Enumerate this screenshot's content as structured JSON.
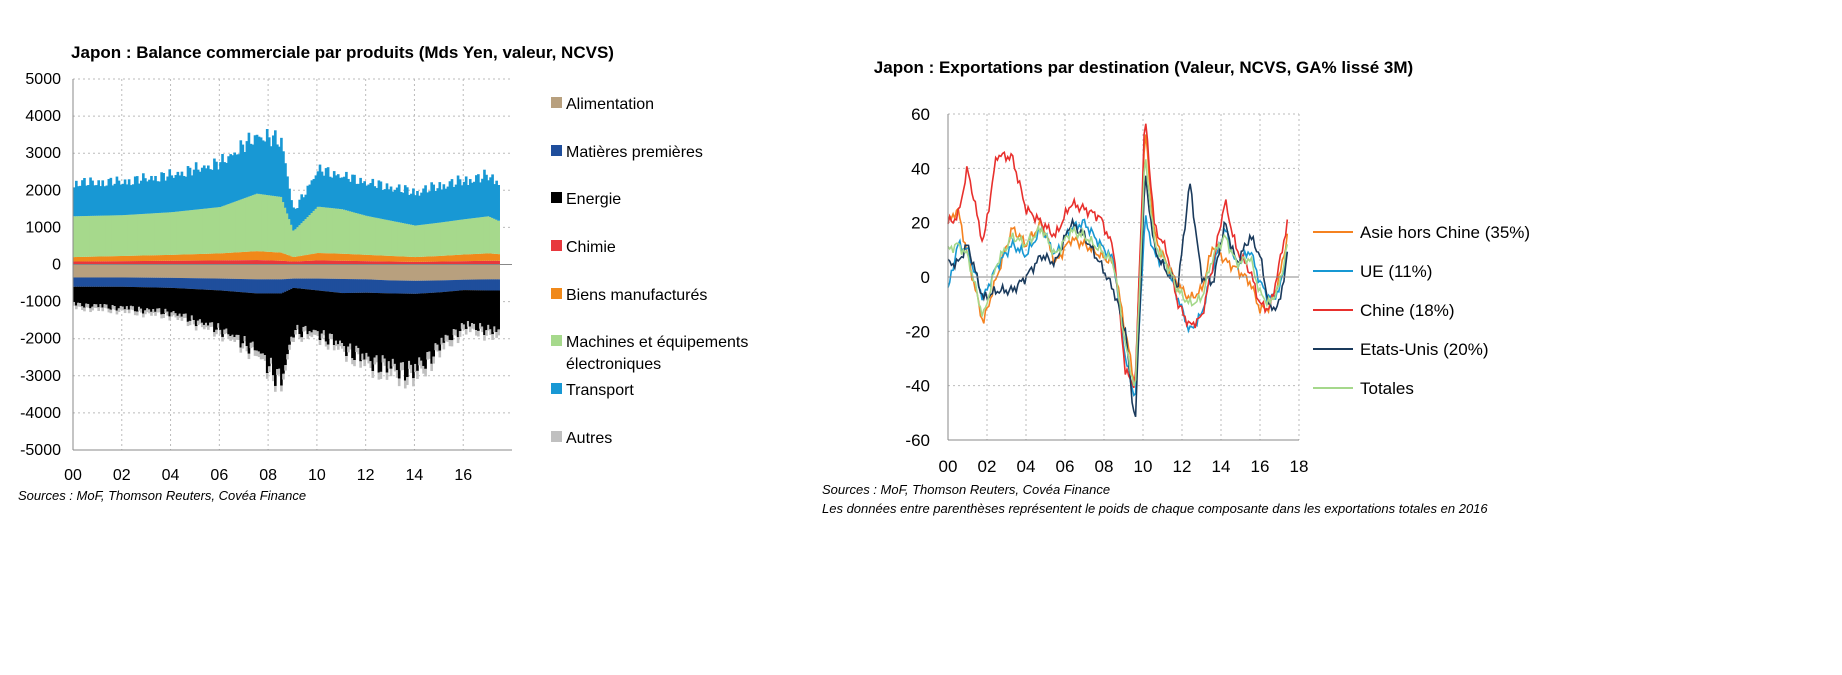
{
  "chart_data": [
    {
      "type": "area",
      "stacked": true,
      "title": "Japon : Balance commerciale par produits (Mds Yen, valeur, NCVS)",
      "xlabel": "",
      "ylabel": "",
      "ylim": [
        -5000,
        5000
      ],
      "yticks": [
        5000,
        4000,
        3000,
        2000,
        1000,
        0,
        -1000,
        -2000,
        -3000,
        -4000,
        -5000
      ],
      "xlim": [
        2000,
        2018
      ],
      "xtick_values": [
        2000,
        2002,
        2004,
        2006,
        2008,
        2010,
        2012,
        2014,
        2016
      ],
      "xtick_labels": [
        "00",
        "02",
        "04",
        "06",
        "08",
        "10",
        "12",
        "14",
        "16"
      ],
      "grid": true,
      "legend_position": "right",
      "anchor_x": [
        2000,
        2002,
        2004,
        2006,
        2007.5,
        2008.5,
        2009,
        2010,
        2011,
        2012,
        2013,
        2014,
        2015,
        2016,
        2017,
        2017.4
      ],
      "series": [
        {
          "name": "Alimentation",
          "color": "#b8a07e",
          "values": [
            -350,
            -350,
            -360,
            -380,
            -400,
            -400,
            -380,
            -380,
            -390,
            -400,
            -430,
            -440,
            -430,
            -410,
            -400,
            -400
          ]
        },
        {
          "name": "Matières premières",
          "color": "#1f4e9c",
          "values": [
            -250,
            -250,
            -270,
            -320,
            -380,
            -380,
            -250,
            -320,
            -380,
            -360,
            -350,
            -350,
            -320,
            -280,
            -300,
            -300
          ]
        },
        {
          "name": "Energie",
          "color": "#000000",
          "values": [
            -500,
            -600,
            -700,
            -1100,
            -1600,
            -2500,
            -1200,
            -1200,
            -1500,
            -1900,
            -2100,
            -2200,
            -1500,
            -1000,
            -1100,
            -1200
          ]
        },
        {
          "name": "Chimie",
          "color": "#e8383d",
          "values": [
            80,
            90,
            100,
            110,
            120,
            100,
            80,
            110,
            100,
            90,
            80,
            70,
            80,
            90,
            100,
            100
          ]
        },
        {
          "name": "Biens manufacturés",
          "color": "#f0891a",
          "values": [
            120,
            140,
            160,
            190,
            240,
            220,
            120,
            200,
            190,
            170,
            150,
            130,
            150,
            180,
            200,
            180
          ]
        },
        {
          "name": "Machines et équipements électroniques",
          "color": "#a6d98c",
          "values": [
            1100,
            1100,
            1150,
            1250,
            1550,
            1500,
            700,
            1250,
            1200,
            1050,
            950,
            850,
            900,
            950,
            1000,
            900
          ]
        },
        {
          "name": "Transport",
          "color": "#1898d4",
          "values": [
            950,
            950,
            1050,
            1250,
            1650,
            1600,
            550,
            1050,
            950,
            950,
            950,
            950,
            1050,
            1100,
            1150,
            1100
          ]
        },
        {
          "name": "Autres",
          "color": "#c0c0c0",
          "values": [
            -100,
            -100,
            -110,
            -120,
            -150,
            -160,
            -120,
            -130,
            -150,
            -180,
            -200,
            -220,
            -180,
            -150,
            -150,
            -160
          ]
        }
      ]
    },
    {
      "type": "line",
      "title": "Japon : Exportations par destination (Valeur, NCVS, GA% lissé 3M)",
      "xlabel": "",
      "ylabel": "",
      "ylim": [
        -60,
        60
      ],
      "yticks": [
        60,
        40,
        20,
        0,
        -20,
        -40,
        -60
      ],
      "xlim": [
        2000,
        2018
      ],
      "xtick_values": [
        2000,
        2002,
        2004,
        2006,
        2008,
        2010,
        2012,
        2014,
        2016,
        2018
      ],
      "xtick_labels": [
        "00",
        "02",
        "04",
        "06",
        "08",
        "10",
        "12",
        "14",
        "16",
        "18"
      ],
      "grid": true,
      "legend_position": "right",
      "series": [
        {
          "name": "Asie hors Chine (35%)",
          "color": "#f58220",
          "x": [
            2000,
            2000.5,
            2001,
            2001.8,
            2002.5,
            2003.3,
            2004,
            2004.8,
            2005.5,
            2006.3,
            2007,
            2007.8,
            2008.5,
            2009.1,
            2009.6,
            2010.1,
            2010.6,
            2011.2,
            2011.8,
            2012.4,
            2013,
            2013.6,
            2014.2,
            2014.8,
            2015.5,
            2016,
            2016.5,
            2017,
            2017.4
          ],
          "y": [
            20,
            25,
            8,
            -17,
            0,
            18,
            12,
            20,
            5,
            14,
            12,
            8,
            5,
            -20,
            -40,
            55,
            15,
            5,
            -3,
            -8,
            -5,
            12,
            6,
            3,
            -2,
            -12,
            -11,
            0,
            15
          ]
        },
        {
          "name": "UE (11%)",
          "color": "#1798d3",
          "x": [
            2000,
            2000.5,
            2001,
            2001.8,
            2002.5,
            2003.3,
            2004,
            2004.8,
            2005.5,
            2006.3,
            2007,
            2007.8,
            2008.5,
            2009.1,
            2009.6,
            2010.1,
            2010.6,
            2011.2,
            2011.8,
            2012.4,
            2013,
            2013.6,
            2014.2,
            2014.8,
            2015.5,
            2016,
            2016.5,
            2017,
            2017.4
          ],
          "y": [
            -5,
            12,
            10,
            -8,
            4,
            12,
            8,
            18,
            8,
            18,
            20,
            12,
            6,
            -30,
            -45,
            22,
            8,
            4,
            -8,
            -20,
            -14,
            4,
            18,
            4,
            10,
            -2,
            -8,
            -5,
            10
          ]
        },
        {
          "name": "Chine (18%)",
          "color": "#e8302d",
          "x": [
            2000,
            2000.5,
            2001,
            2001.8,
            2002.5,
            2003.3,
            2004,
            2004.8,
            2005.5,
            2006.3,
            2007,
            2007.8,
            2008.5,
            2009.1,
            2009.6,
            2010.1,
            2010.6,
            2011.2,
            2011.8,
            2012.4,
            2013,
            2013.6,
            2014.2,
            2014.8,
            2015.5,
            2016,
            2016.5,
            2017,
            2017.4
          ],
          "y": [
            20,
            22,
            40,
            12,
            45,
            44,
            25,
            20,
            15,
            27,
            25,
            22,
            10,
            -35,
            -40,
            60,
            18,
            10,
            -10,
            -18,
            -15,
            5,
            28,
            10,
            2,
            -10,
            -12,
            5,
            20
          ]
        },
        {
          "name": "Etats-Unis (20%)",
          "color": "#1a3a5c",
          "x": [
            2000,
            2000.5,
            2001,
            2001.8,
            2002.5,
            2003.3,
            2004,
            2004.8,
            2005.5,
            2006.3,
            2007,
            2007.8,
            2008.5,
            2009.1,
            2009.6,
            2010.1,
            2010.6,
            2011.2,
            2011.8,
            2012.4,
            2013,
            2013.6,
            2014.2,
            2014.8,
            2015.5,
            2016,
            2016.5,
            2017,
            2017.4
          ],
          "y": [
            5,
            5,
            12,
            -8,
            -5,
            -5,
            0,
            8,
            5,
            20,
            15,
            5,
            -5,
            -20,
            -55,
            38,
            10,
            2,
            -3,
            35,
            0,
            -2,
            20,
            5,
            15,
            8,
            -12,
            -10,
            8
          ]
        },
        {
          "name": "Totales",
          "color": "#a5d88b",
          "x": [
            2000,
            2000.5,
            2001,
            2001.8,
            2002.5,
            2003.3,
            2004,
            2004.8,
            2005.5,
            2006.3,
            2007,
            2007.8,
            2008.5,
            2009.1,
            2009.6,
            2010.1,
            2010.6,
            2011.2,
            2011.8,
            2012.4,
            2013,
            2013.6,
            2014.2,
            2014.8,
            2015.5,
            2016,
            2016.5,
            2017,
            2017.4
          ],
          "y": [
            10,
            12,
            8,
            -15,
            5,
            15,
            12,
            18,
            8,
            17,
            15,
            10,
            5,
            -25,
            -42,
            45,
            12,
            5,
            -5,
            -10,
            -8,
            8,
            15,
            5,
            7,
            -6,
            -10,
            -3,
            12
          ]
        }
      ]
    }
  ],
  "sources": {
    "left": "Sources : MoF, Thomson Reuters, Covéa Finance",
    "right": "Sources : MoF, Thomson Reuters, Covéa Finance",
    "right_note": "Les données entre parenthèses représentent le poids de chaque composante dans les exportations totales en 2016"
  }
}
